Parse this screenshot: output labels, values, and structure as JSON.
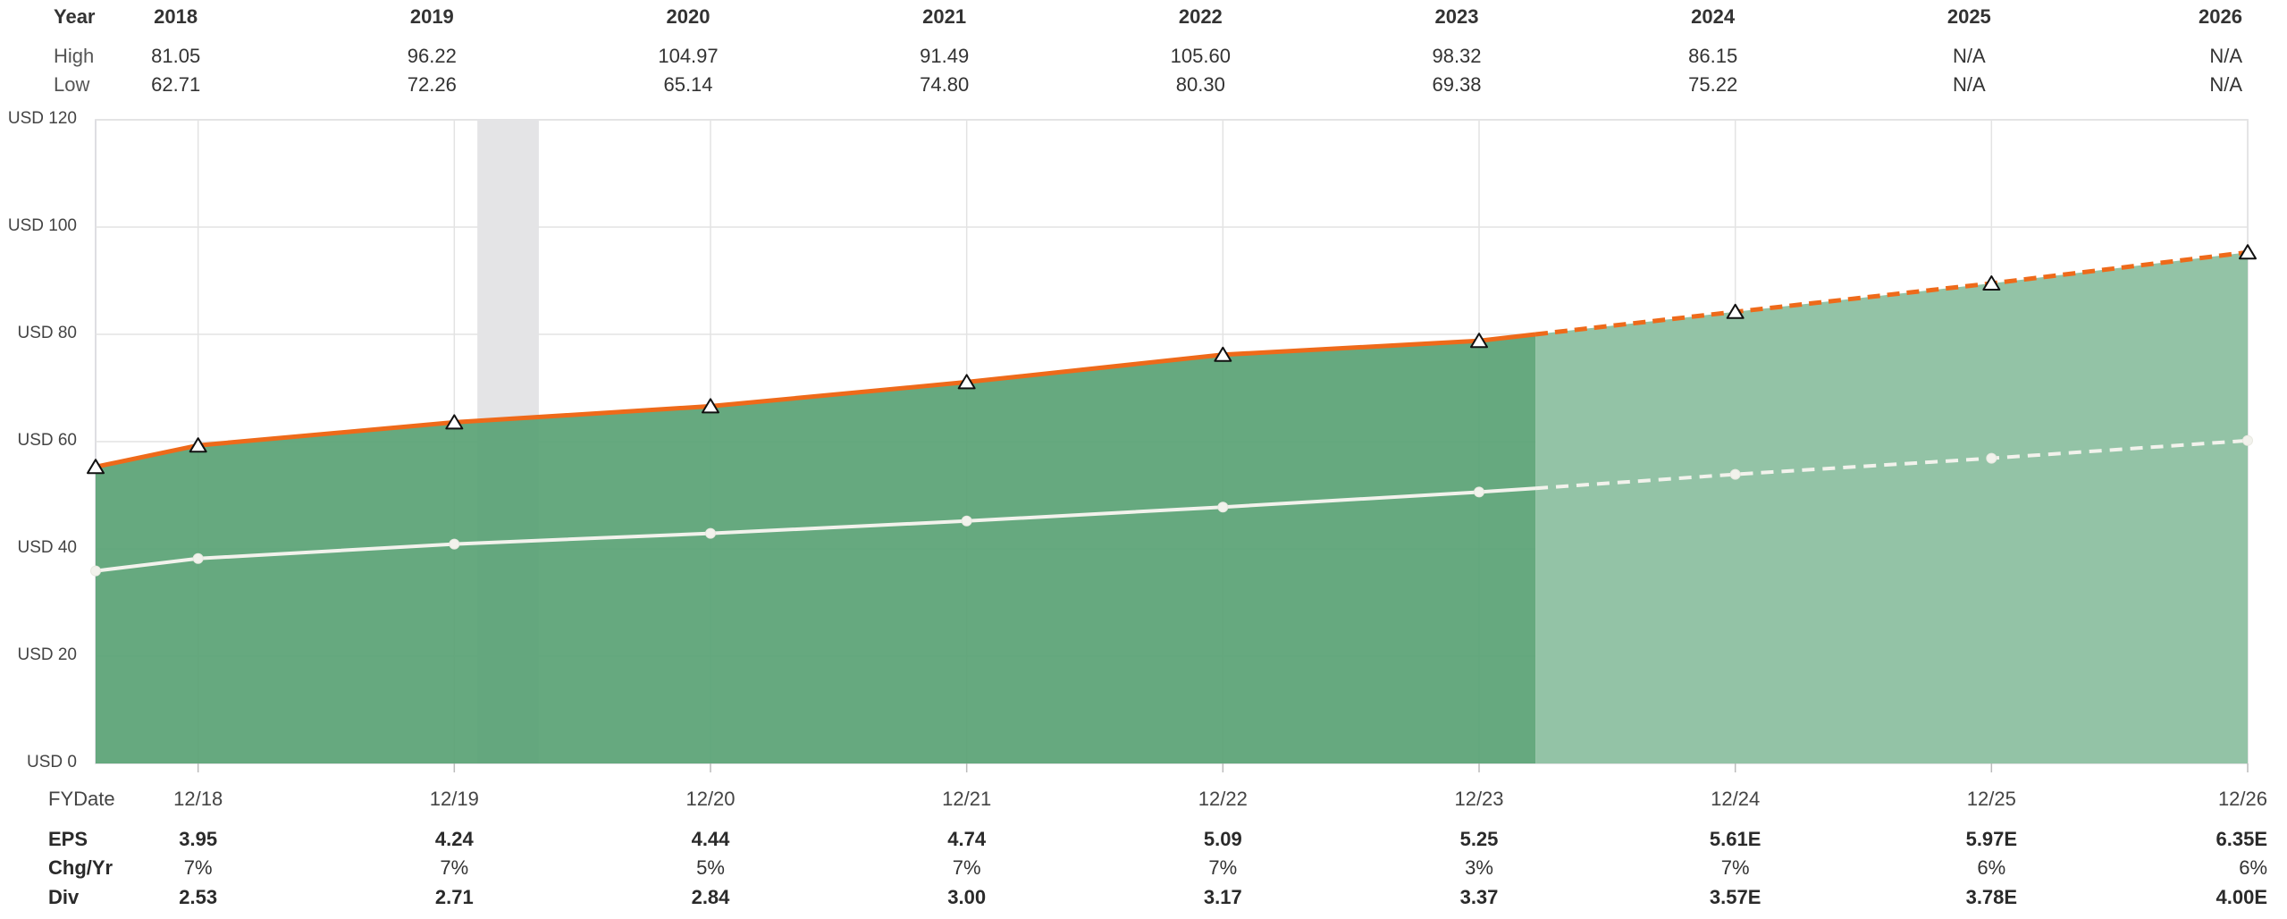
{
  "table_top": {
    "year_label": "Year",
    "high_label": "High",
    "low_label": "Low",
    "years": [
      "2018",
      "2019",
      "2020",
      "2021",
      "2022",
      "2023",
      "2024",
      "2025",
      "2026"
    ],
    "high": [
      "81.05",
      "96.22",
      "104.97",
      "91.49",
      "105.60",
      "98.32",
      "86.15",
      "N/A",
      "N/A"
    ],
    "low": [
      "62.71",
      "72.26",
      "65.14",
      "74.80",
      "80.30",
      "69.38",
      "75.22",
      "N/A",
      "N/A"
    ]
  },
  "table_bottom": {
    "fydate_label": "FYDate",
    "eps_label": "EPS",
    "chg_label": "Chg/Yr",
    "div_label": "Div",
    "dates": [
      "12/18",
      "12/19",
      "12/20",
      "12/21",
      "12/22",
      "12/23",
      "12/24",
      "12/25",
      "12/26"
    ],
    "eps": [
      "3.95",
      "4.24",
      "4.44",
      "4.74",
      "5.09",
      "5.25",
      "5.61E",
      "5.97E",
      "6.35E"
    ],
    "chg": [
      "7%",
      "7%",
      "5%",
      "7%",
      "7%",
      "3%",
      "7%",
      "6%",
      "6%"
    ],
    "div": [
      "2.53",
      "2.71",
      "2.84",
      "3.00",
      "3.17",
      "3.37",
      "3.57E",
      "3.78E",
      "4.00E"
    ]
  },
  "colors": {
    "area_actual": "#5aa375",
    "area_estimate": "#93c3a6",
    "line_orange": "#ee6a1a",
    "line_white": "#f2f2ec",
    "recession": "#e4e4e6",
    "grid": "#e3e3e3"
  },
  "chart_data": {
    "type": "area",
    "x_axis": "fiscal year end",
    "x": [
      2017.6,
      2018,
      2019,
      2020,
      2021,
      2022,
      2023,
      2023.22,
      2024,
      2025,
      2026
    ],
    "ylim": [
      0,
      120
    ],
    "yticks": [
      0,
      20,
      40,
      60,
      80,
      100,
      120
    ],
    "ytick_labels": [
      "USD 0",
      "USD 20",
      "USD 40",
      "USD 60",
      "USD 80",
      "USD 100",
      "USD 120"
    ],
    "series": [
      {
        "values": [
          55.3,
          59.3,
          63.6,
          66.6,
          71.1,
          76.2,
          78.8,
          80.0,
          84.2,
          89.5,
          95.3
        ],
        "marker": "triangle",
        "estimate_from_x": 2023.22
      },
      {
        "values": [
          35.9,
          38.2,
          40.9,
          42.9,
          45.2,
          47.8,
          50.6,
          51.3,
          53.9,
          56.9,
          60.2
        ],
        "marker": "dot",
        "estimate_from_x": 2023.22
      }
    ],
    "marker_x": [
      2017.6,
      2018,
      2019,
      2020,
      2021,
      2022,
      2023,
      2024,
      2025,
      2026
    ],
    "recession_band": [
      2019.09,
      2019.33
    ],
    "estimate_start_x": 2023.22
  }
}
